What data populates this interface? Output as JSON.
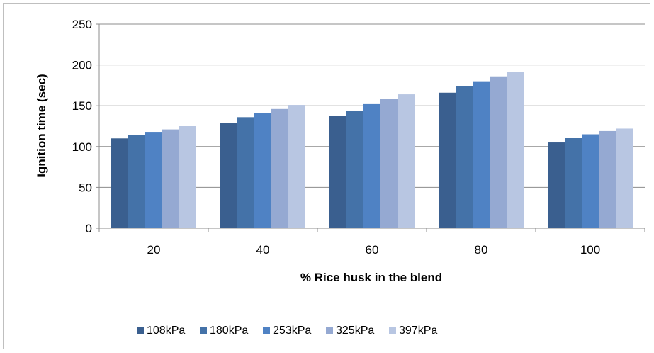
{
  "chart_data": {
    "type": "bar",
    "categories": [
      "20",
      "40",
      "60",
      "80",
      "100"
    ],
    "series": [
      {
        "name": "108kPa",
        "color": "#3a5f8f",
        "values": [
          110,
          129,
          138,
          166,
          105
        ]
      },
      {
        "name": "180kPa",
        "color": "#4472a8",
        "values": [
          114,
          136,
          144,
          174,
          111
        ]
      },
      {
        "name": "253kPa",
        "color": "#4f82c4",
        "values": [
          118,
          141,
          152,
          180,
          115
        ]
      },
      {
        "name": "325kPa",
        "color": "#95a9d2",
        "values": [
          121,
          146,
          158,
          186,
          119
        ]
      },
      {
        "name": "397kPa",
        "color": "#b8c6e2",
        "values": [
          125,
          151,
          164,
          191,
          122
        ]
      }
    ],
    "xlabel": "% Rice husk in the blend",
    "ylabel": "Ignition time (sec)",
    "ylim": [
      0,
      250
    ],
    "yticks": [
      "0",
      "50",
      "100",
      "150",
      "200",
      "250"
    ],
    "grid": true,
    "legend": "bottom"
  }
}
